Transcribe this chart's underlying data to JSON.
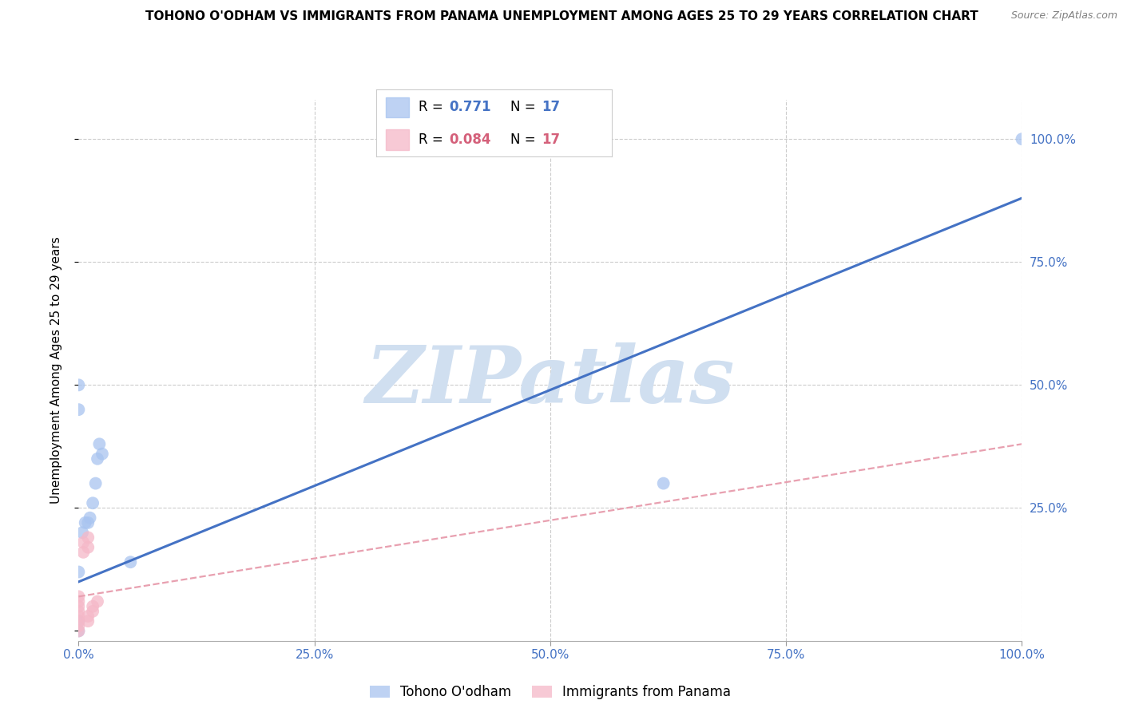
{
  "title": "TOHONO O'ODHAM VS IMMIGRANTS FROM PANAMA UNEMPLOYMENT AMONG AGES 25 TO 29 YEARS CORRELATION CHART",
  "source": "Source: ZipAtlas.com",
  "ylabel": "Unemployment Among Ages 25 to 29 years",
  "xlim": [
    0,
    1.0
  ],
  "ylim": [
    -0.02,
    1.08
  ],
  "xticks": [
    0.0,
    0.25,
    0.5,
    0.75,
    1.0
  ],
  "xticklabels": [
    "0.0%",
    "25.0%",
    "50.0%",
    "75.0%",
    "100.0%"
  ],
  "right_yticks": [
    0.25,
    0.5,
    0.75,
    1.0
  ],
  "right_yticklabels": [
    "25.0%",
    "50.0%",
    "75.0%",
    "100.0%"
  ],
  "legend_r1_val": "0.771",
  "legend_n1_val": "17",
  "legend_r2_val": "0.084",
  "legend_n2_val": "17",
  "legend_label1": "Tohono O'odham",
  "legend_label2": "Immigrants from Panama",
  "blue_scatter_x": [
    0.0,
    0.0,
    0.0,
    0.004,
    0.007,
    0.01,
    0.012,
    0.015,
    0.018,
    0.02,
    0.022,
    0.025,
    0.055,
    0.62,
    1.0,
    0.0,
    0.0
  ],
  "blue_scatter_y": [
    0.5,
    0.45,
    0.02,
    0.2,
    0.22,
    0.22,
    0.23,
    0.26,
    0.3,
    0.35,
    0.38,
    0.36,
    0.14,
    0.3,
    1.0,
    0.0,
    0.12
  ],
  "pink_scatter_x": [
    0.0,
    0.0,
    0.0,
    0.0,
    0.0,
    0.0,
    0.0,
    0.0,
    0.005,
    0.005,
    0.01,
    0.01,
    0.01,
    0.01,
    0.015,
    0.015,
    0.02
  ],
  "pink_scatter_y": [
    0.0,
    0.01,
    0.02,
    0.03,
    0.04,
    0.05,
    0.06,
    0.07,
    0.16,
    0.18,
    0.02,
    0.03,
    0.17,
    0.19,
    0.04,
    0.05,
    0.06
  ],
  "blue_line_x0": 0.0,
  "blue_line_x1": 1.0,
  "blue_line_y0": 0.1,
  "blue_line_y1": 0.88,
  "pink_line_x0": 0.0,
  "pink_line_x1": 1.0,
  "pink_line_y0": 0.07,
  "pink_line_y1": 0.38,
  "blue_color": "#a8c4f0",
  "pink_color": "#f5b8c8",
  "blue_line_color": "#4472C4",
  "pink_line_color": "#e8a0b0",
  "tick_color": "#4472C4",
  "scatter_size": 130,
  "watermark_text": "ZIPatlas",
  "watermark_color": "#d0dff0",
  "watermark_size": 72,
  "background_color": "#ffffff",
  "grid_color": "#cccccc",
  "title_fontsize": 11,
  "source_fontsize": 9,
  "ylabel_fontsize": 11
}
